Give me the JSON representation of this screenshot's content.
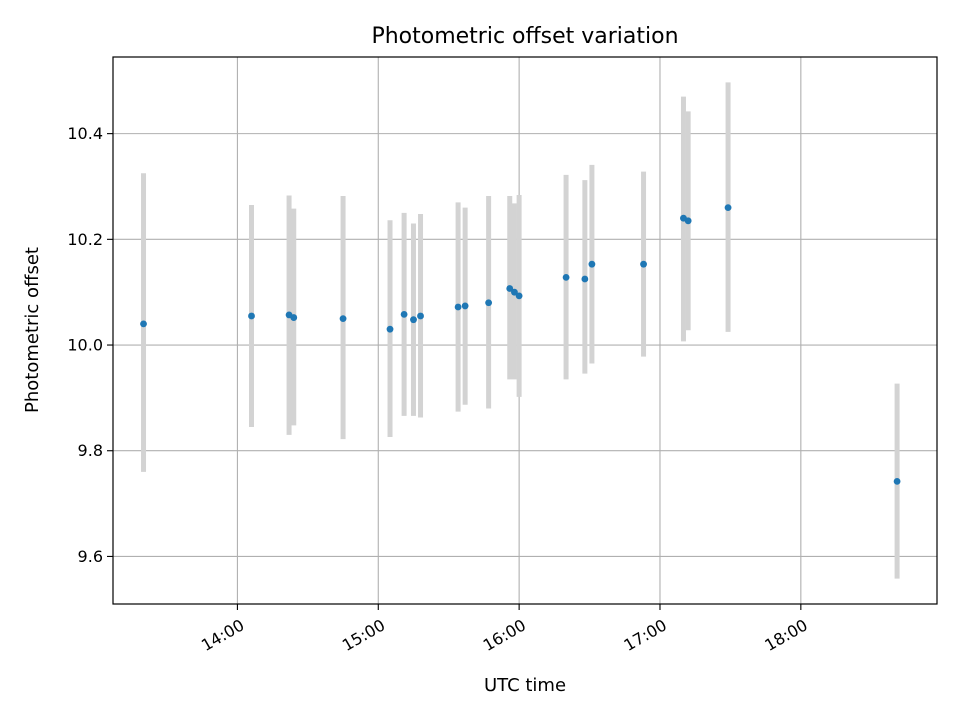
{
  "chart_data": {
    "type": "scatter",
    "title": "Photometric offset variation",
    "xlabel": "UTC time",
    "ylabel": "Photometric offset",
    "x_axis": "time-of-day",
    "xlim": [
      "13:07",
      "18:58"
    ],
    "ylim": [
      9.51,
      10.545
    ],
    "x_ticks": [
      "14:00",
      "15:00",
      "16:00",
      "17:00",
      "18:00"
    ],
    "y_ticks": [
      9.6,
      9.8,
      10.0,
      10.2,
      10.4
    ],
    "grid": true,
    "colors": {
      "point": "#1f77b4",
      "error_bar": "#d3d3d3",
      "grid": "#b0b0b0"
    },
    "points": [
      {
        "x": "13:20",
        "y": 10.04,
        "ylow": 9.76,
        "yhigh": 10.325
      },
      {
        "x": "14:06",
        "y": 10.055,
        "ylow": 9.845,
        "yhigh": 10.265
      },
      {
        "x": "14:22",
        "y": 10.057,
        "ylow": 9.83,
        "yhigh": 10.283
      },
      {
        "x": "14:24",
        "y": 10.052,
        "ylow": 9.848,
        "yhigh": 10.258
      },
      {
        "x": "14:45",
        "y": 10.05,
        "ylow": 9.822,
        "yhigh": 10.282
      },
      {
        "x": "15:05",
        "y": 10.03,
        "ylow": 9.826,
        "yhigh": 10.236
      },
      {
        "x": "15:11",
        "y": 10.058,
        "ylow": 9.866,
        "yhigh": 10.25
      },
      {
        "x": "15:15",
        "y": 10.048,
        "ylow": 9.866,
        "yhigh": 10.23
      },
      {
        "x": "15:18",
        "y": 10.055,
        "ylow": 9.863,
        "yhigh": 10.248
      },
      {
        "x": "15:34",
        "y": 10.072,
        "ylow": 9.874,
        "yhigh": 10.27
      },
      {
        "x": "15:37",
        "y": 10.074,
        "ylow": 9.887,
        "yhigh": 10.26
      },
      {
        "x": "15:47",
        "y": 10.08,
        "ylow": 9.88,
        "yhigh": 10.282
      },
      {
        "x": "15:56",
        "y": 10.107,
        "ylow": 9.935,
        "yhigh": 10.282
      },
      {
        "x": "15:58",
        "y": 10.1,
        "ylow": 9.935,
        "yhigh": 10.268
      },
      {
        "x": "16:00",
        "y": 10.093,
        "ylow": 9.902,
        "yhigh": 10.284
      },
      {
        "x": "16:20",
        "y": 10.128,
        "ylow": 9.935,
        "yhigh": 10.322
      },
      {
        "x": "16:28",
        "y": 10.125,
        "ylow": 9.946,
        "yhigh": 10.312
      },
      {
        "x": "16:31",
        "y": 10.153,
        "ylow": 9.965,
        "yhigh": 10.341
      },
      {
        "x": "16:53",
        "y": 10.153,
        "ylow": 9.978,
        "yhigh": 10.328
      },
      {
        "x": "17:10",
        "y": 10.24,
        "ylow": 10.007,
        "yhigh": 10.47
      },
      {
        "x": "17:12",
        "y": 10.235,
        "ylow": 10.028,
        "yhigh": 10.442
      },
      {
        "x": "17:29",
        "y": 10.26,
        "ylow": 10.025,
        "yhigh": 10.497
      },
      {
        "x": "18:41",
        "y": 9.742,
        "ylow": 9.558,
        "yhigh": 9.927
      }
    ]
  }
}
